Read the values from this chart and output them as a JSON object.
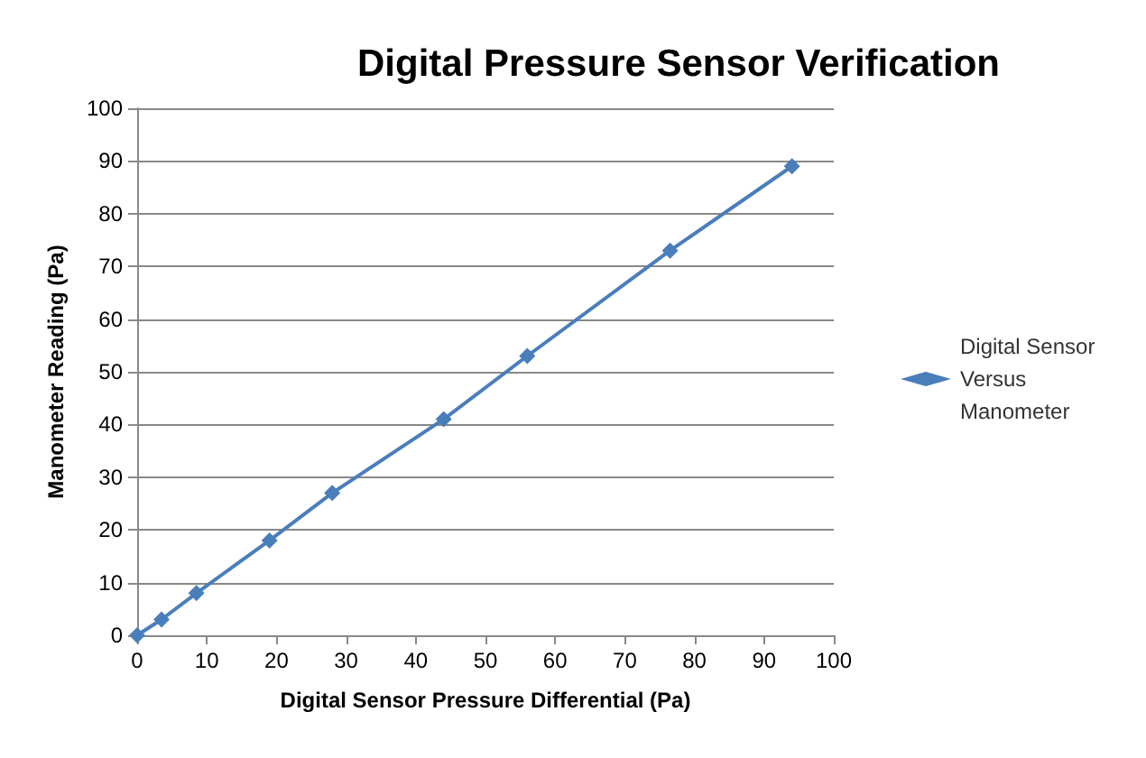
{
  "chart_data": {
    "type": "line",
    "title": "Digital Pressure Sensor Verification",
    "xlabel": "Digital Sensor Pressure Differential (Pa)",
    "ylabel": "Manometer Reading (Pa)",
    "x": [
      0,
      3.5,
      8.5,
      19,
      28,
      44,
      56,
      76.5,
      94
    ],
    "series": [
      {
        "name": "Digital Sensor Versus Manometer",
        "color": "#4a7ebb",
        "values": [
          0,
          3,
          8,
          18,
          27,
          41,
          53,
          73,
          89
        ]
      }
    ],
    "xlim": [
      0,
      100
    ],
    "xticks": [
      0,
      10,
      20,
      30,
      40,
      50,
      60,
      70,
      80,
      90,
      100
    ],
    "ylim": [
      0,
      100
    ],
    "yticks": [
      0,
      10,
      20,
      30,
      40,
      50,
      60,
      70,
      80,
      90,
      100
    ],
    "grid": "y",
    "legend": "right",
    "marker": "diamond",
    "line_style": "solid"
  }
}
